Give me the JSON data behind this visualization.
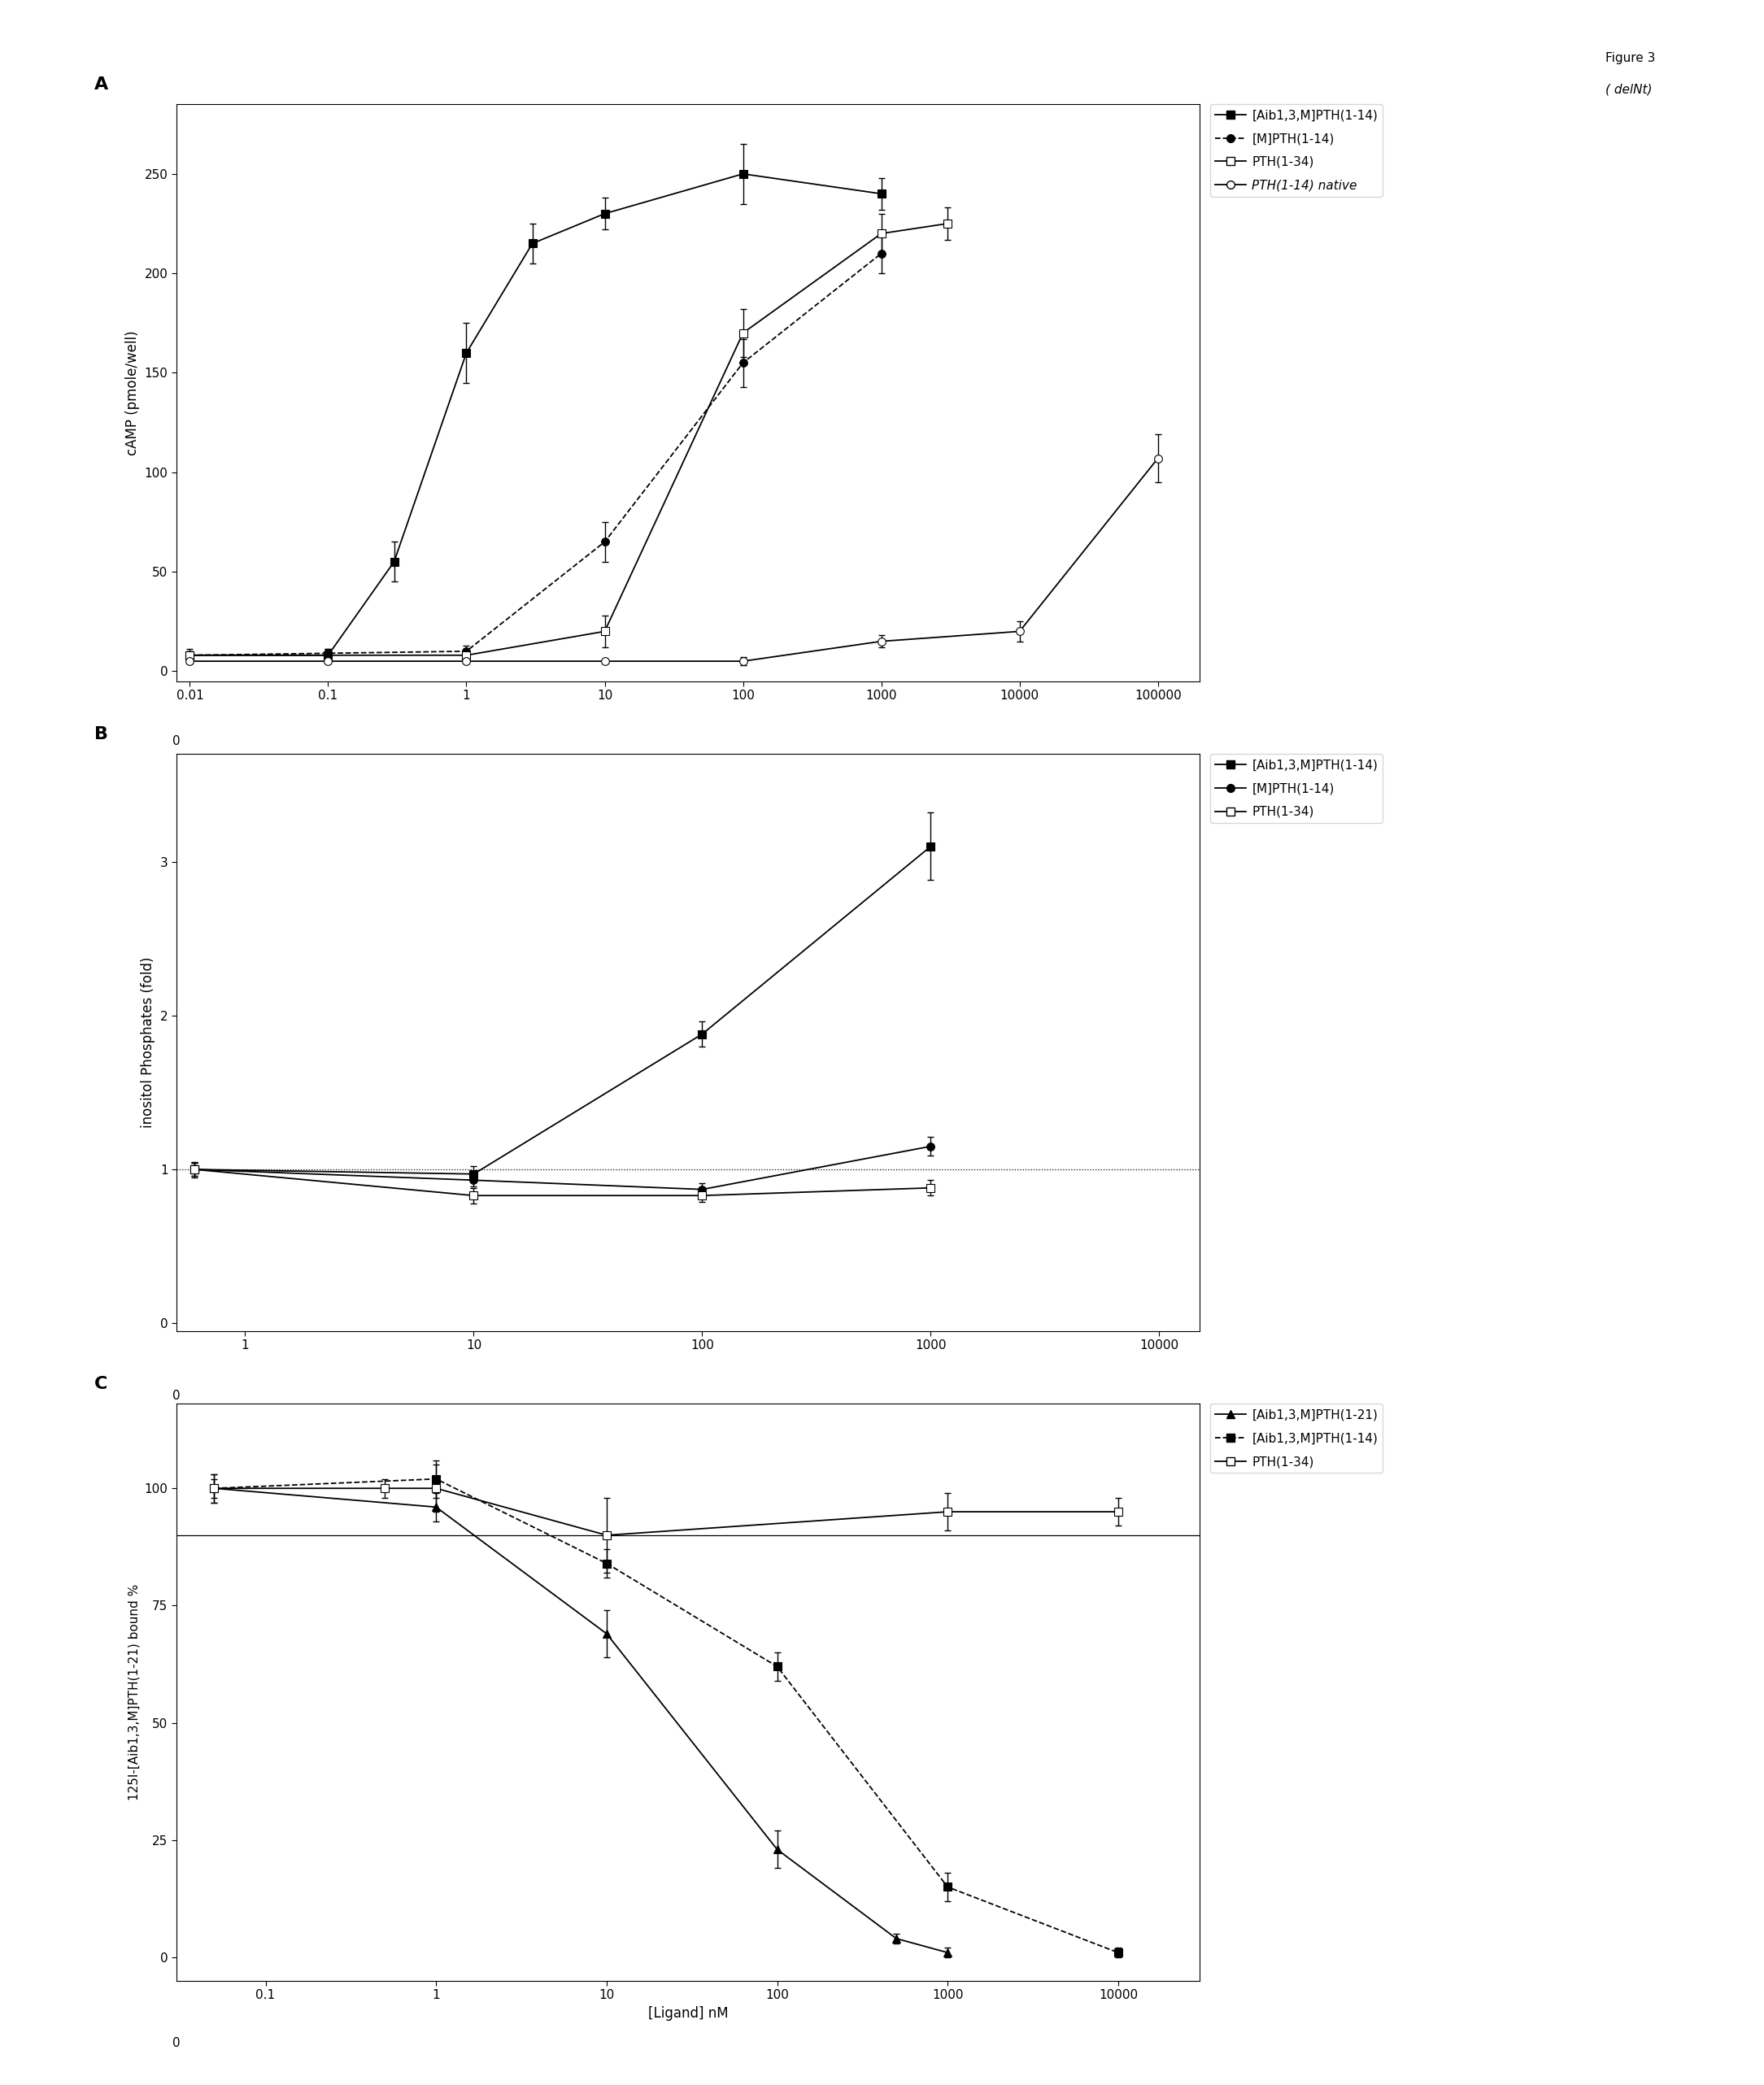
{
  "figure_label": "Figure 3",
  "figure_sublabel": "( delNt)",
  "panel_A": {
    "label": "A",
    "ylabel": "cAMP (pmole/well)",
    "ylim": [
      -5,
      285
    ],
    "yticks": [
      0,
      50,
      100,
      150,
      200,
      250
    ],
    "xlim_log": [
      0.008,
      200000
    ],
    "xticks": [
      0.01,
      0.1,
      1,
      10,
      100,
      1000,
      10000,
      100000
    ],
    "xticklabels": [
      "0.01",
      "0.1",
      "1",
      "10",
      "100",
      "1000",
      "10000",
      "100000"
    ],
    "series": [
      {
        "label": "[Aib1,3,M]PTH(1-14)",
        "marker": "s",
        "fillstyle": "full",
        "linestyle": "-",
        "x": [
          0.01,
          0.1,
          0.3,
          1,
          3,
          10,
          100,
          1000
        ],
        "y": [
          8,
          8,
          55,
          160,
          215,
          230,
          250,
          240
        ],
        "yerr": [
          3,
          3,
          10,
          15,
          10,
          8,
          15,
          8
        ]
      },
      {
        "label": "[M]PTH(1-14)",
        "marker": "o",
        "fillstyle": "full",
        "linestyle": "--",
        "x": [
          0.01,
          0.1,
          1,
          10,
          100,
          1000
        ],
        "y": [
          8,
          9,
          10,
          65,
          155,
          210
        ],
        "yerr": [
          2,
          2,
          3,
          10,
          12,
          10
        ]
      },
      {
        "label": "PTH(1-34)",
        "marker": "s",
        "fillstyle": "none",
        "linestyle": "-",
        "x": [
          0.01,
          1,
          10,
          100,
          1000,
          3000
        ],
        "y": [
          8,
          8,
          20,
          170,
          220,
          225
        ],
        "yerr": [
          2,
          3,
          8,
          12,
          10,
          8
        ]
      },
      {
        "label": "PTH(1-14) native",
        "marker": "o",
        "fillstyle": "none",
        "linestyle": "-",
        "x": [
          0.01,
          0.1,
          1,
          10,
          100,
          1000,
          10000,
          100000
        ],
        "y": [
          5,
          5,
          5,
          5,
          5,
          15,
          20,
          107
        ],
        "yerr": [
          1,
          1,
          1,
          1,
          2,
          3,
          5,
          12
        ]
      }
    ],
    "legend_labels": [
      "[Aib1,3,M]PTH(1-14)",
      "[M]PTH(1-14)",
      "PTH(1-34)",
      "PTH(1-14) native"
    ],
    "legend_italic": [
      false,
      false,
      false,
      true
    ]
  },
  "panel_B": {
    "label": "B",
    "ylabel": "inositol Phosphates (fold)",
    "ylim": [
      -0.05,
      3.7
    ],
    "yticks": [
      0,
      1,
      2,
      3
    ],
    "xlim_log": [
      0.5,
      15000
    ],
    "xticks": [
      1,
      10,
      100,
      1000,
      10000
    ],
    "xticklabels": [
      "1",
      "10",
      "100",
      "1000",
      "10000"
    ],
    "dotted_y": 1.0,
    "series": [
      {
        "label": "[Aib1,3,M]PTH(1-14)",
        "marker": "s",
        "fillstyle": "full",
        "linestyle": "-",
        "x": [
          0.6,
          10,
          100,
          1000
        ],
        "y": [
          1.0,
          0.97,
          1.88,
          3.1
        ],
        "yerr": [
          0.05,
          0.05,
          0.08,
          0.22
        ]
      },
      {
        "label": "[M]PTH(1-14)",
        "marker": "o",
        "fillstyle": "full",
        "linestyle": "-",
        "x": [
          0.6,
          10,
          100,
          1000
        ],
        "y": [
          1.0,
          0.93,
          0.87,
          1.15
        ],
        "yerr": [
          0.04,
          0.04,
          0.04,
          0.06
        ]
      },
      {
        "label": "PTH(1-34)",
        "marker": "s",
        "fillstyle": "none",
        "linestyle": "-",
        "x": [
          0.6,
          10,
          100,
          1000
        ],
        "y": [
          1.0,
          0.83,
          0.83,
          0.88
        ],
        "yerr": [
          0.04,
          0.05,
          0.04,
          0.05
        ]
      }
    ],
    "legend_labels": [
      "[Aib1,3,M]PTH(1-14)",
      "[M]PTH(1-14)",
      "PTH(1-34)"
    ]
  },
  "panel_C": {
    "label": "C",
    "ylabel": "125I-[Aib1,3,M]PTH(1-21) bound %",
    "xlabel": "[Ligand] nM",
    "ylim": [
      -5,
      118
    ],
    "yticks": [
      0,
      25,
      50,
      75,
      100
    ],
    "xlim_log": [
      0.03,
      30000
    ],
    "xticks": [
      0.1,
      1,
      10,
      100,
      1000,
      10000
    ],
    "xticklabels": [
      "0.1",
      "1",
      "10",
      "100",
      "1000",
      "10000"
    ],
    "hline_y": 90,
    "series": [
      {
        "label": "[Aib1,3,M]PTH(1-21)",
        "marker": "^",
        "fillstyle": "full",
        "linestyle": "-",
        "x": [
          0.05,
          1,
          10,
          100,
          500,
          1000
        ],
        "y": [
          100,
          96,
          69,
          23,
          4,
          1
        ],
        "yerr": [
          2,
          3,
          5,
          4,
          1,
          1
        ]
      },
      {
        "label": "[Aib1,3,M]PTH(1-14)",
        "marker": "s",
        "fillstyle": "full",
        "linestyle": "--",
        "x": [
          0.05,
          1,
          10,
          100,
          1000,
          10000
        ],
        "y": [
          100,
          102,
          84,
          62,
          15,
          1
        ],
        "yerr": [
          3,
          4,
          3,
          3,
          3,
          1
        ]
      },
      {
        "label": "PTH(1-34)",
        "marker": "s",
        "fillstyle": "none",
        "linestyle": "-",
        "x": [
          0.05,
          0.5,
          1,
          10,
          1000,
          10000
        ],
        "y": [
          100,
          100,
          100,
          90,
          95,
          95
        ],
        "yerr": [
          3,
          2,
          5,
          8,
          4,
          3
        ]
      }
    ],
    "legend_labels": [
      "[Aib1,3,M]PTH(1-21)",
      "[Aib1,3,M]PTH(1-14)",
      "PTH(1-34)"
    ]
  }
}
